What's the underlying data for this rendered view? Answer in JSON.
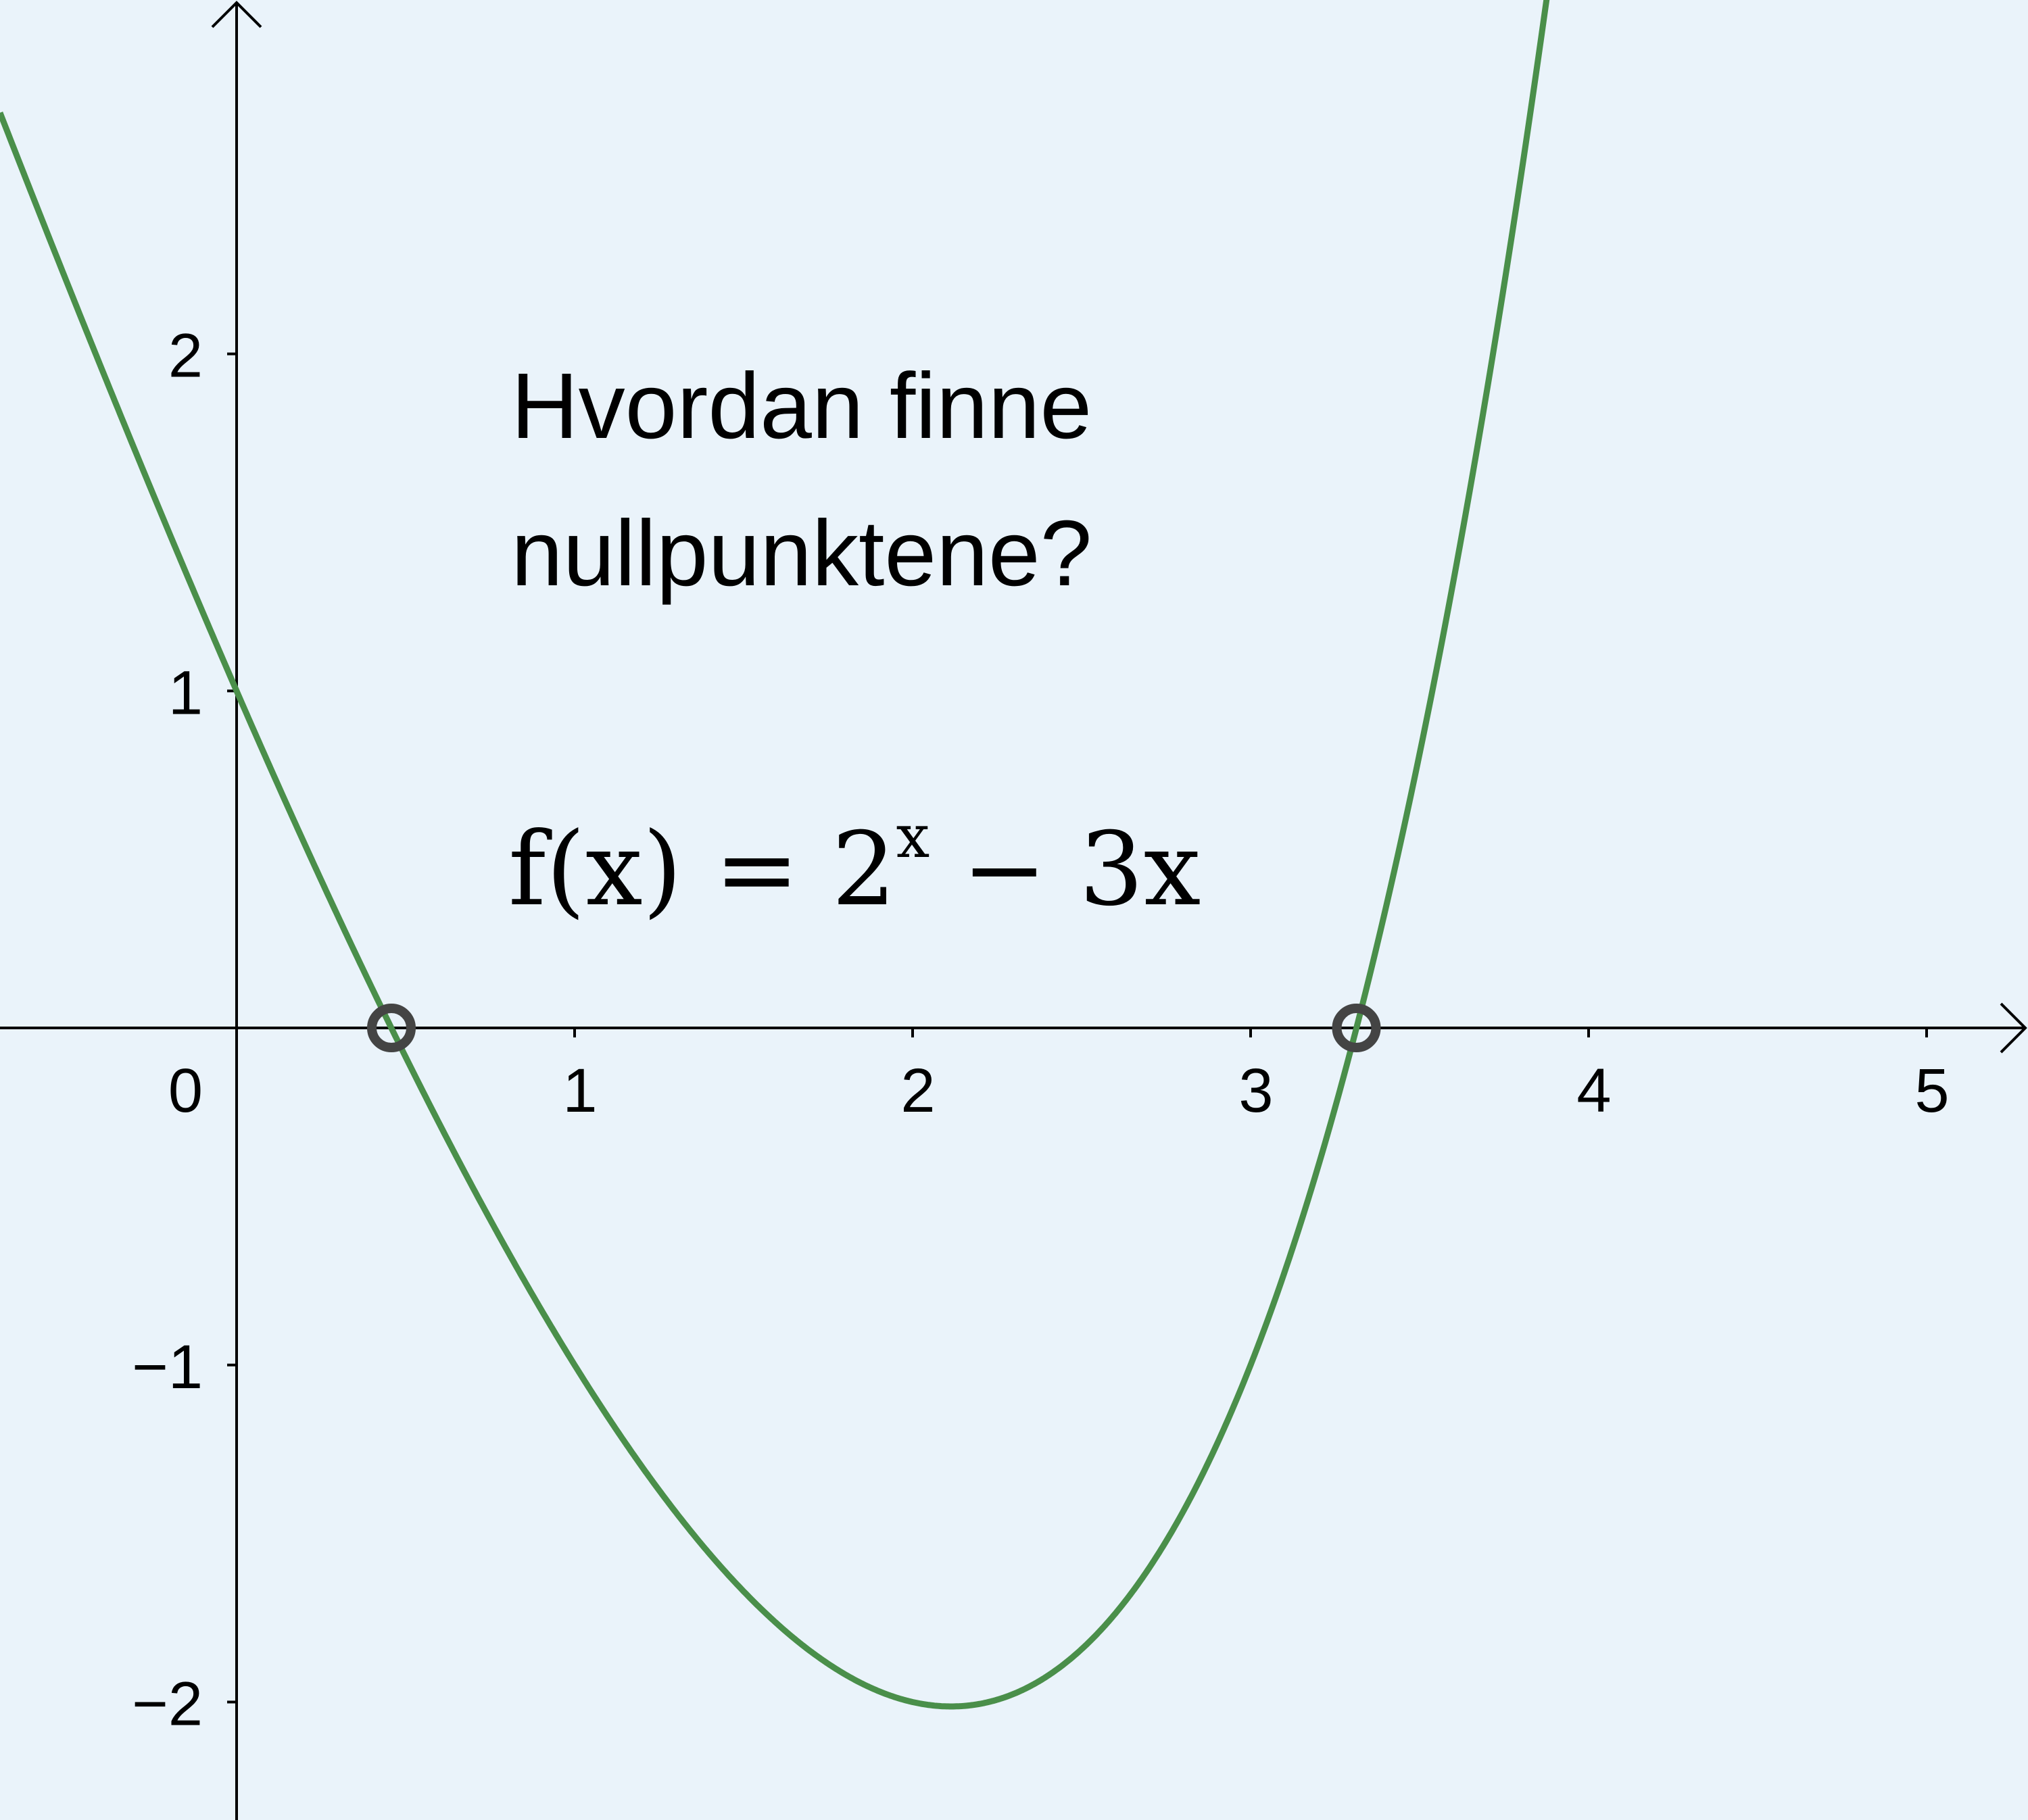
{
  "chart_data": {
    "type": "line",
    "question_lines": [
      "Hvordan finne",
      "nullpunktene?"
    ],
    "formula": {
      "lhs": "f(x)",
      "equals": "=",
      "base": "2",
      "exponent": "x",
      "minus": "−",
      "term": "3x"
    },
    "x_tick_labels": [
      "0",
      "1",
      "2",
      "3",
      "4",
      "5"
    ],
    "y_tick_labels": [
      "2",
      "1",
      "−1",
      "−2"
    ],
    "x_ticks": [
      1,
      2,
      3,
      4,
      5
    ],
    "y_ticks": [
      2,
      1,
      -1,
      -2
    ],
    "xlim": [
      -0.7,
      5.3
    ],
    "ylim": [
      -2.35,
      3.05
    ],
    "series": [
      {
        "expression": "2^x - 3x",
        "color": "#4a8f4a"
      }
    ],
    "zeros": [
      {
        "x": 0.458,
        "y": 0
      },
      {
        "x": 3.313,
        "y": 0
      }
    ],
    "colors": {
      "background": "#eaf3fa",
      "curve": "#4a8f4a",
      "zero_marker": "#444444",
      "axis": "#000000"
    }
  }
}
